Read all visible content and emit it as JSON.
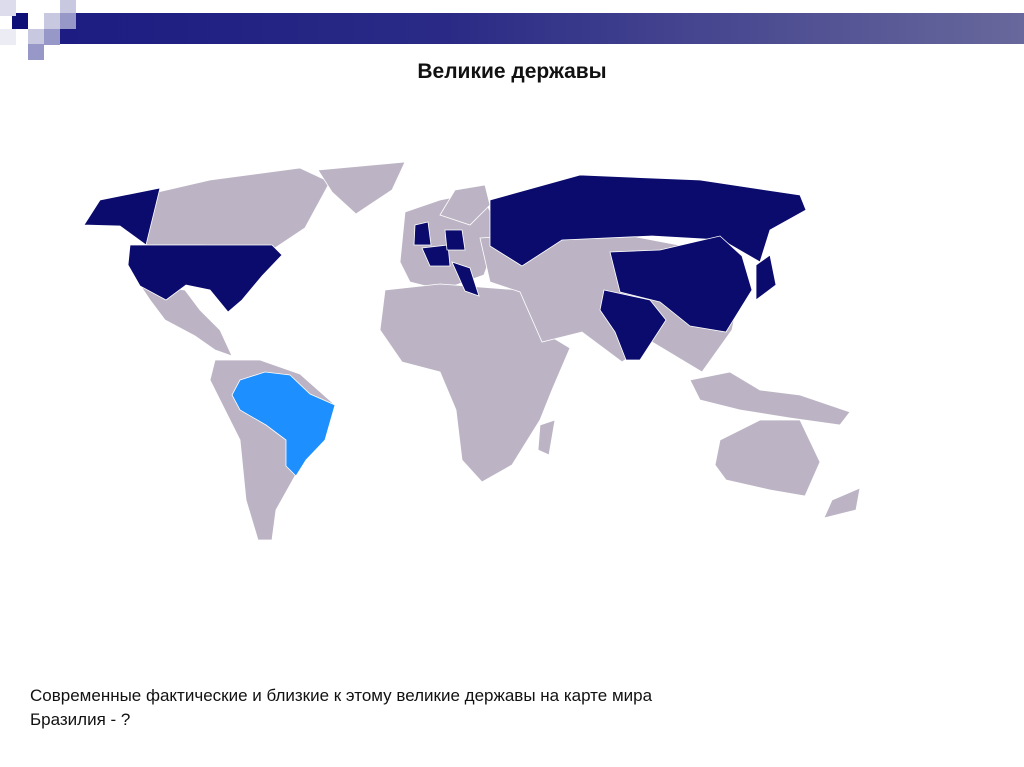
{
  "slide": {
    "title": "Великие державы",
    "caption_line1": "Современные фактические и близкие к этому великие державы на карте мира",
    "caption_line2": "Бразилия - ?"
  },
  "map": {
    "colors": {
      "great_power": "#0b0b6e",
      "candidate": "#1e8fff",
      "other": "#bcb4c4",
      "decoration": "#1c1c82"
    },
    "great_powers_highlighted": [
      "USA",
      "Russia",
      "China",
      "India",
      "Japan",
      "United Kingdom",
      "France",
      "Germany",
      "Italy"
    ],
    "candidate_highlighted": [
      "Brazil"
    ]
  }
}
